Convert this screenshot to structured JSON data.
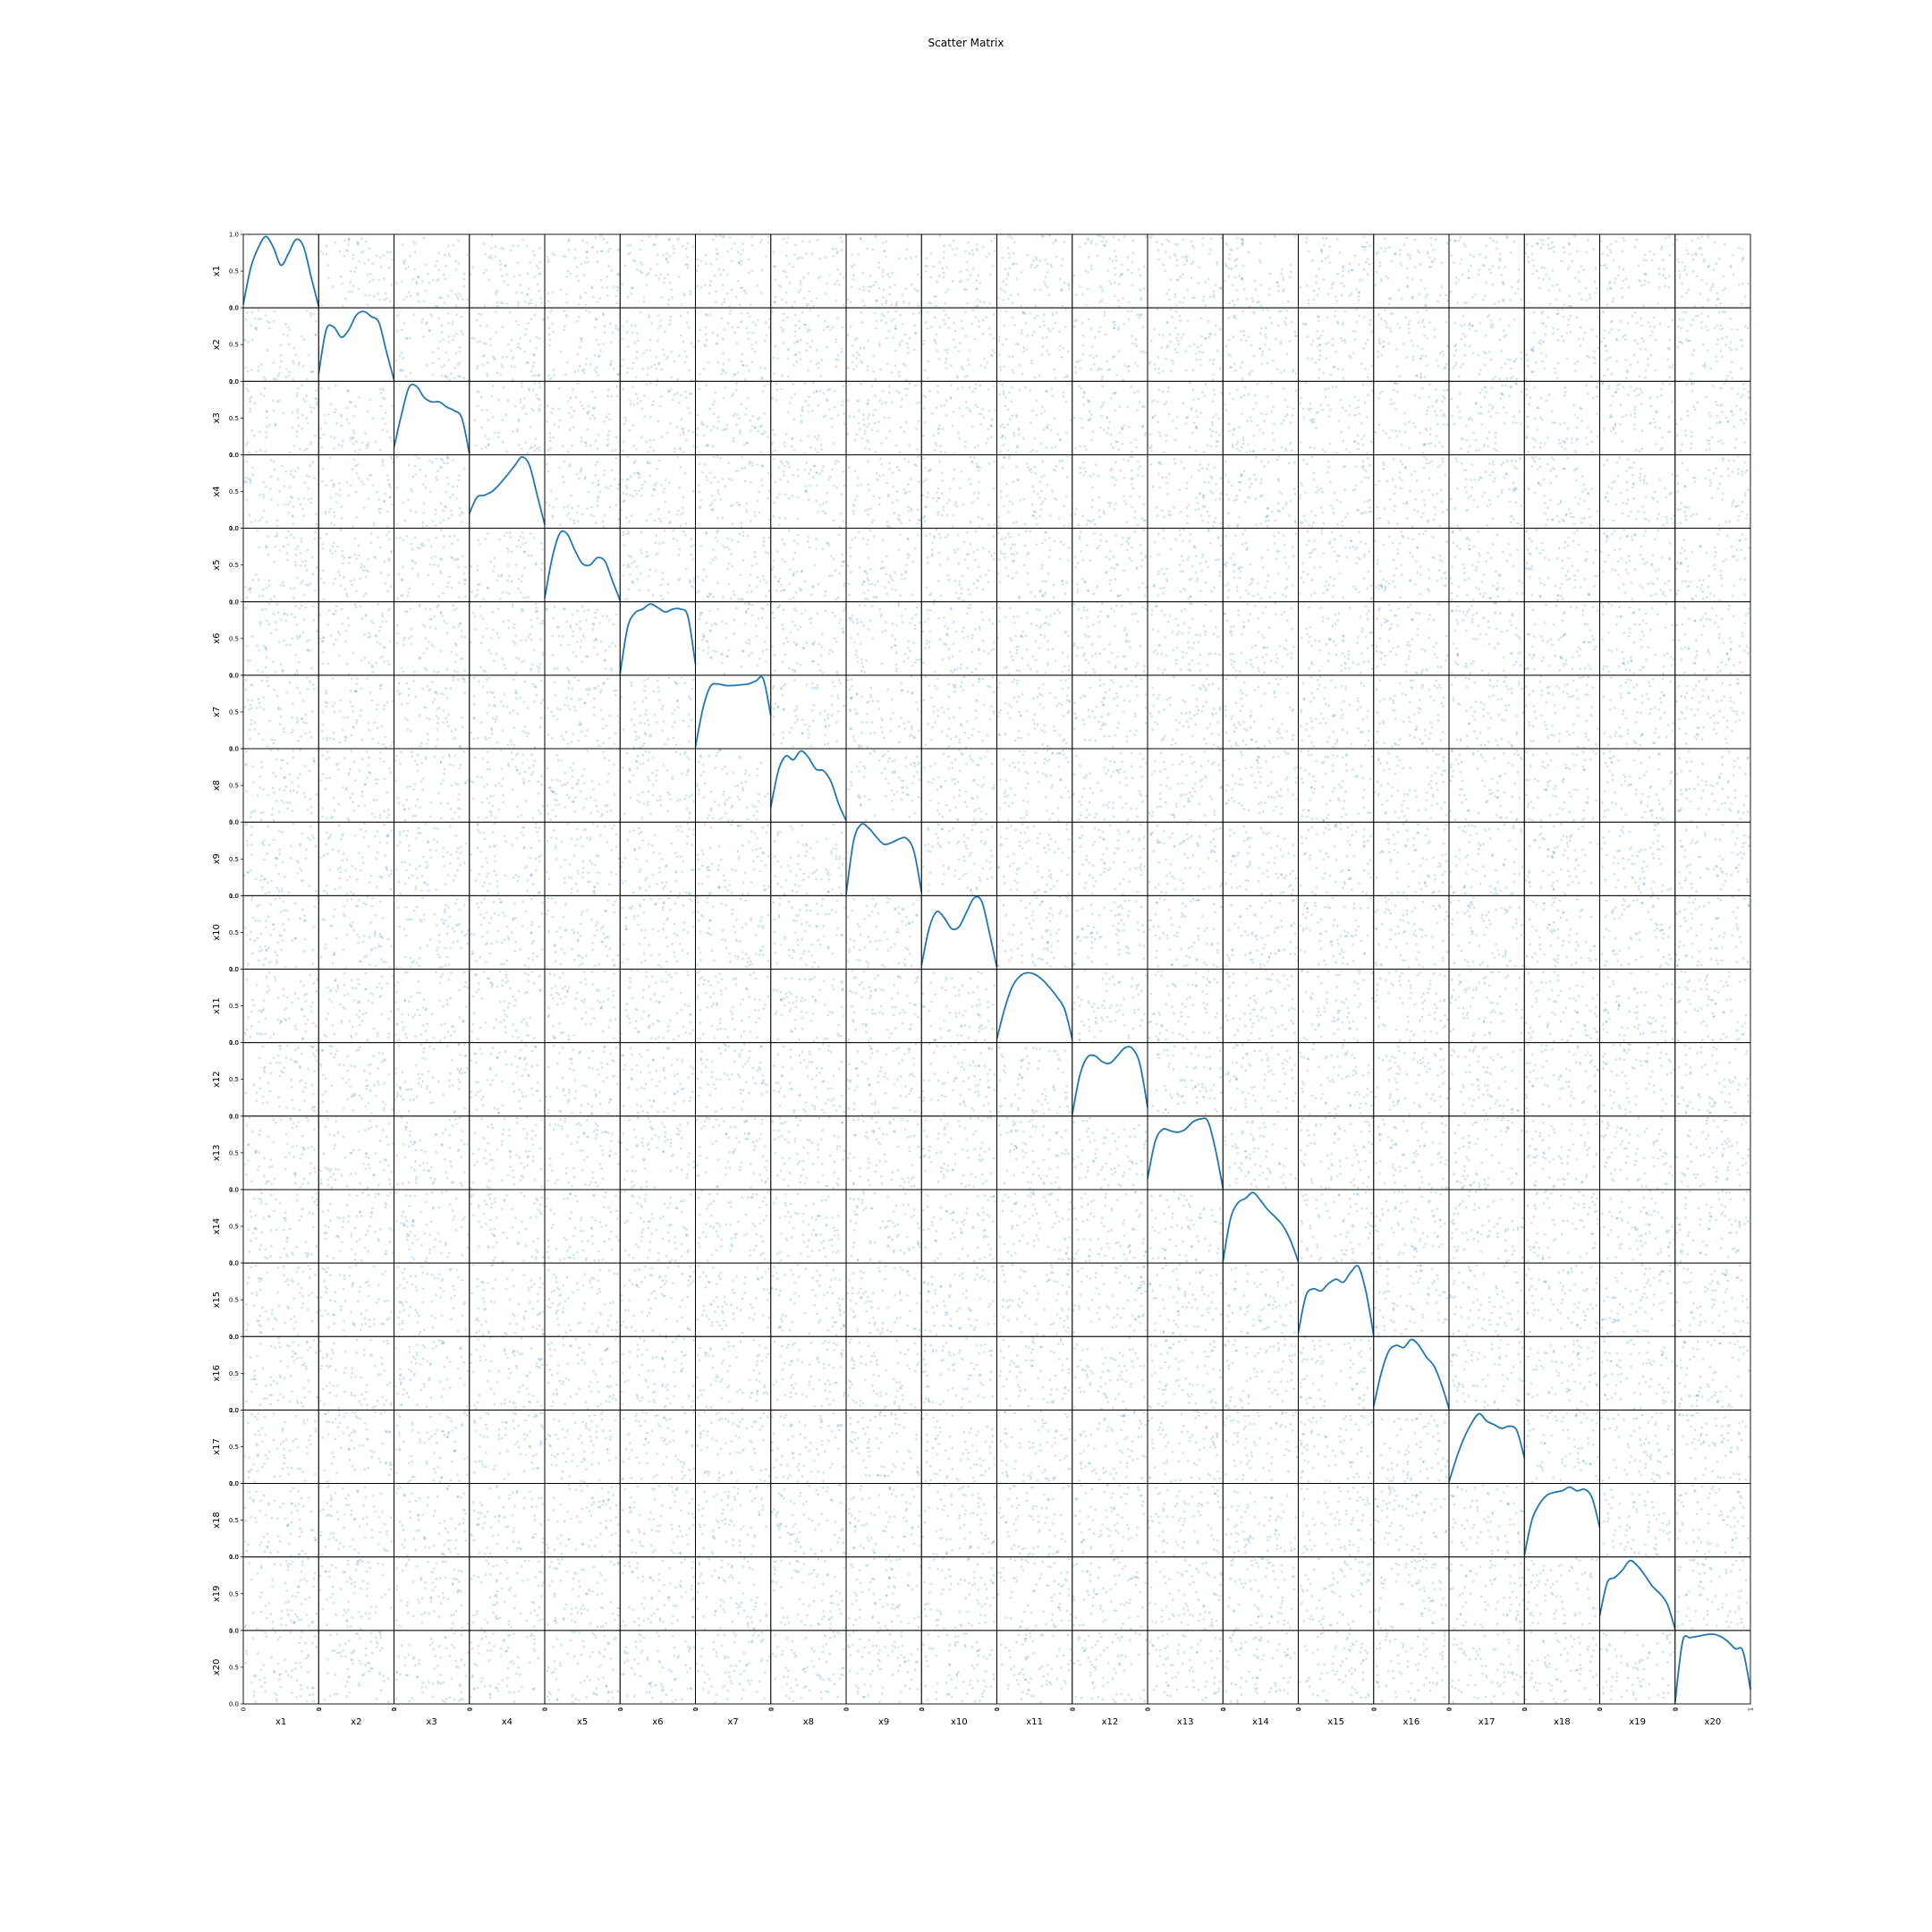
{
  "chart_data": {
    "type": "scatter",
    "title": "Scatter Matrix",
    "variables": [
      "x1",
      "x2",
      "x3",
      "x4",
      "x5",
      "x6",
      "x7",
      "x8",
      "x9",
      "x10",
      "x11",
      "x12",
      "x13",
      "x14",
      "x15",
      "x16",
      "x17",
      "x18",
      "x19",
      "x20"
    ],
    "diagonal": "kde",
    "x_range": [
      0,
      1
    ],
    "y_range": [
      0,
      1
    ],
    "x_ticks": [
      "0",
      "1"
    ],
    "y_ticks": [
      "0.0",
      "0.5",
      "1.0"
    ],
    "grid": false,
    "point_color": "#1f77b4",
    "line_color": "#1f77b4",
    "kde_curves": [
      {
        "name": "x1",
        "x": [
          0,
          0.1,
          0.2,
          0.3,
          0.4,
          0.5,
          0.6,
          0.7,
          0.8,
          0.9,
          1
        ],
        "y": [
          0.05,
          0.55,
          0.82,
          0.97,
          0.82,
          0.58,
          0.74,
          0.93,
          0.83,
          0.42,
          0.02
        ]
      },
      {
        "name": "x2",
        "x": [
          0,
          0.1,
          0.2,
          0.3,
          0.4,
          0.5,
          0.6,
          0.7,
          0.8,
          0.9,
          1
        ],
        "y": [
          0.1,
          0.7,
          0.74,
          0.6,
          0.7,
          0.9,
          0.95,
          0.88,
          0.8,
          0.4,
          0.02
        ]
      },
      {
        "name": "x3",
        "x": [
          0,
          0.1,
          0.2,
          0.3,
          0.4,
          0.5,
          0.6,
          0.7,
          0.8,
          0.9,
          1
        ],
        "y": [
          0.1,
          0.55,
          0.92,
          0.93,
          0.78,
          0.72,
          0.72,
          0.65,
          0.6,
          0.5,
          0.02
        ]
      },
      {
        "name": "x4",
        "x": [
          0,
          0.1,
          0.2,
          0.3,
          0.4,
          0.5,
          0.6,
          0.7,
          0.8,
          0.9,
          1
        ],
        "y": [
          0.2,
          0.42,
          0.45,
          0.5,
          0.6,
          0.72,
          0.85,
          0.97,
          0.85,
          0.45,
          0.05
        ]
      },
      {
        "name": "x5",
        "x": [
          0,
          0.1,
          0.2,
          0.3,
          0.4,
          0.5,
          0.6,
          0.7,
          0.8,
          0.9,
          1
        ],
        "y": [
          0.05,
          0.6,
          0.93,
          0.92,
          0.7,
          0.52,
          0.5,
          0.6,
          0.55,
          0.28,
          0.02
        ]
      },
      {
        "name": "x6",
        "x": [
          0,
          0.1,
          0.2,
          0.3,
          0.4,
          0.5,
          0.6,
          0.7,
          0.8,
          0.9,
          1
        ],
        "y": [
          0.02,
          0.65,
          0.85,
          0.9,
          0.97,
          0.92,
          0.86,
          0.9,
          0.9,
          0.8,
          0.15
        ]
      },
      {
        "name": "x7",
        "x": [
          0,
          0.1,
          0.2,
          0.3,
          0.4,
          0.5,
          0.6,
          0.7,
          0.8,
          0.9,
          1
        ],
        "y": [
          0.02,
          0.55,
          0.85,
          0.88,
          0.86,
          0.86,
          0.87,
          0.88,
          0.92,
          0.95,
          0.45
        ]
      },
      {
        "name": "x8",
        "x": [
          0,
          0.1,
          0.2,
          0.3,
          0.4,
          0.5,
          0.6,
          0.7,
          0.8,
          0.9,
          1
        ],
        "y": [
          0.2,
          0.7,
          0.9,
          0.85,
          0.97,
          0.88,
          0.72,
          0.7,
          0.55,
          0.25,
          0.02
        ]
      },
      {
        "name": "x9",
        "x": [
          0,
          0.1,
          0.2,
          0.3,
          0.4,
          0.5,
          0.6,
          0.7,
          0.8,
          0.9,
          1
        ],
        "y": [
          0.02,
          0.75,
          0.97,
          0.92,
          0.8,
          0.7,
          0.72,
          0.77,
          0.78,
          0.6,
          0.05
        ]
      },
      {
        "name": "x10",
        "x": [
          0,
          0.1,
          0.2,
          0.3,
          0.4,
          0.5,
          0.6,
          0.7,
          0.8,
          0.9,
          1
        ],
        "y": [
          0.05,
          0.55,
          0.78,
          0.7,
          0.55,
          0.58,
          0.78,
          0.97,
          0.92,
          0.5,
          0.02
        ]
      },
      {
        "name": "x11",
        "x": [
          0,
          0.1,
          0.2,
          0.3,
          0.4,
          0.5,
          0.6,
          0.7,
          0.8,
          0.9,
          1
        ],
        "y": [
          0.05,
          0.45,
          0.75,
          0.9,
          0.95,
          0.93,
          0.86,
          0.75,
          0.62,
          0.45,
          0.05
        ]
      },
      {
        "name": "x12",
        "x": [
          0,
          0.1,
          0.2,
          0.3,
          0.4,
          0.5,
          0.6,
          0.7,
          0.8,
          0.9,
          1
        ],
        "y": [
          0.02,
          0.55,
          0.8,
          0.82,
          0.74,
          0.72,
          0.82,
          0.93,
          0.92,
          0.7,
          0.12
        ]
      },
      {
        "name": "x13",
        "x": [
          0,
          0.1,
          0.2,
          0.3,
          0.4,
          0.5,
          0.6,
          0.7,
          0.8,
          0.9,
          1
        ],
        "y": [
          0.15,
          0.65,
          0.82,
          0.8,
          0.78,
          0.82,
          0.92,
          0.96,
          0.93,
          0.55,
          0.02
        ]
      },
      {
        "name": "x14",
        "x": [
          0,
          0.1,
          0.2,
          0.3,
          0.4,
          0.5,
          0.6,
          0.7,
          0.8,
          0.9,
          1
        ],
        "y": [
          0.02,
          0.6,
          0.82,
          0.88,
          0.96,
          0.85,
          0.72,
          0.62,
          0.5,
          0.3,
          0.02
        ]
      },
      {
        "name": "x15",
        "x": [
          0,
          0.1,
          0.2,
          0.3,
          0.4,
          0.5,
          0.6,
          0.7,
          0.8,
          0.9,
          1
        ],
        "y": [
          0.05,
          0.55,
          0.65,
          0.62,
          0.72,
          0.78,
          0.74,
          0.88,
          0.95,
          0.6,
          0.02
        ]
      },
      {
        "name": "x16",
        "x": [
          0,
          0.1,
          0.2,
          0.3,
          0.4,
          0.5,
          0.6,
          0.7,
          0.8,
          0.9,
          1
        ],
        "y": [
          0.05,
          0.5,
          0.8,
          0.88,
          0.85,
          0.96,
          0.88,
          0.72,
          0.6,
          0.35,
          0.02
        ]
      },
      {
        "name": "x17",
        "x": [
          0,
          0.1,
          0.2,
          0.3,
          0.4,
          0.5,
          0.6,
          0.7,
          0.8,
          0.9,
          1
        ],
        "y": [
          0.02,
          0.35,
          0.62,
          0.82,
          0.95,
          0.85,
          0.8,
          0.75,
          0.78,
          0.72,
          0.35
        ]
      },
      {
        "name": "x18",
        "x": [
          0,
          0.1,
          0.2,
          0.3,
          0.4,
          0.5,
          0.6,
          0.7,
          0.8,
          0.9,
          1
        ],
        "y": [
          0.02,
          0.5,
          0.72,
          0.84,
          0.88,
          0.9,
          0.95,
          0.9,
          0.92,
          0.8,
          0.4
        ]
      },
      {
        "name": "x19",
        "x": [
          0,
          0.1,
          0.2,
          0.3,
          0.4,
          0.5,
          0.6,
          0.7,
          0.8,
          0.9,
          1
        ],
        "y": [
          0.2,
          0.65,
          0.72,
          0.82,
          0.95,
          0.88,
          0.75,
          0.6,
          0.5,
          0.35,
          0.02
        ]
      },
      {
        "name": "x20",
        "x": [
          0,
          0.1,
          0.2,
          0.3,
          0.4,
          0.5,
          0.6,
          0.7,
          0.8,
          0.9,
          1
        ],
        "y": [
          0.02,
          0.85,
          0.9,
          0.92,
          0.94,
          0.95,
          0.92,
          0.85,
          0.75,
          0.72,
          0.2
        ]
      }
    ],
    "points_per_cell": 70
  }
}
